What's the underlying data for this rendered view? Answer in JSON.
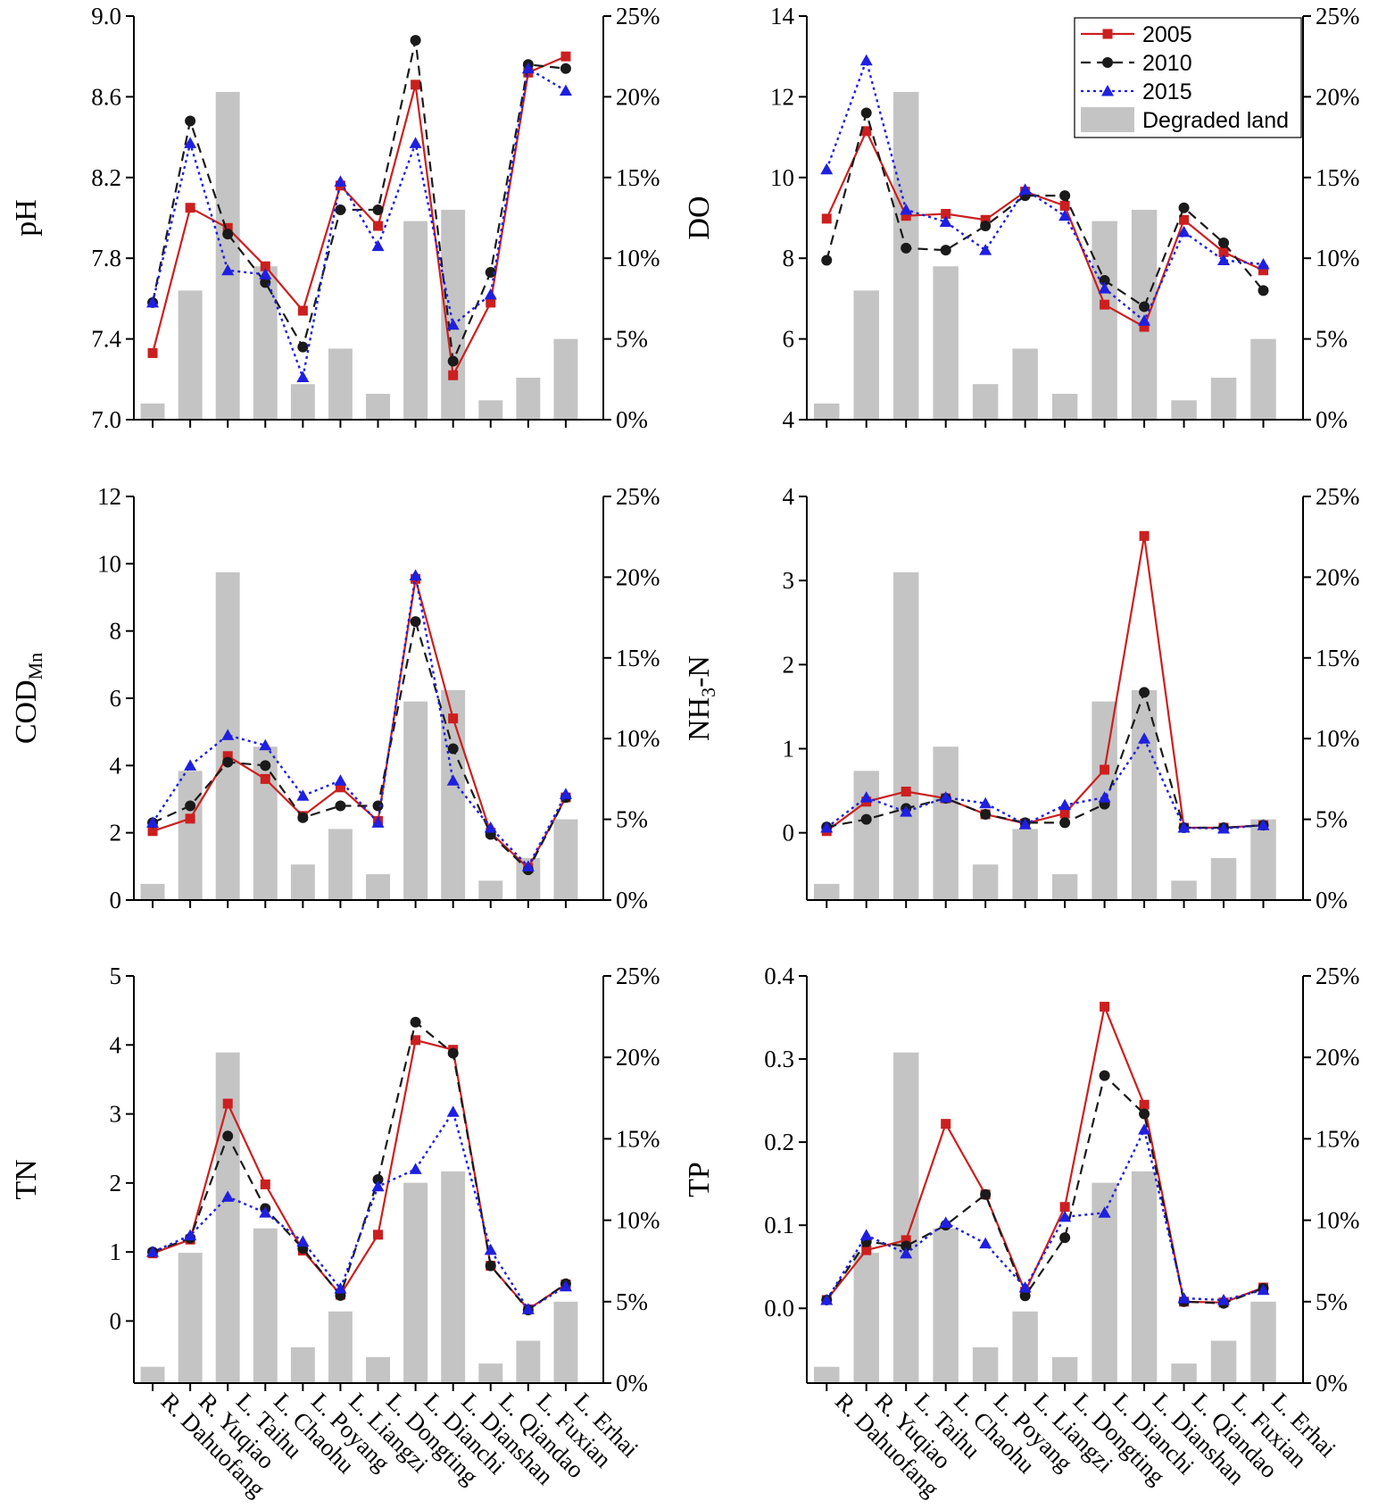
{
  "figure": {
    "categories": [
      "R. Dahuofang",
      "R. Yuqiao",
      "L. Taihu",
      "L. Chaohu",
      "L. Poyang",
      "L. Liangzi",
      "L. Dongting",
      "L. Dianchi",
      "L. Dianshan",
      "L. Qiandao",
      "L. Fuxian",
      "L. Erhai"
    ],
    "colors": {
      "2005": "#cc1f1f",
      "2010": "#1a1a1a",
      "2015": "#1f1fe0",
      "degraded": "#c4c4c4"
    },
    "legend": {
      "entries": [
        {
          "key": "2005",
          "label": "2005"
        },
        {
          "key": "2010",
          "label": "2010"
        },
        {
          "key": "2015",
          "label": "2015"
        },
        {
          "key": "degraded",
          "label": "Degraded land"
        }
      ]
    },
    "degraded_land_pct": [
      1,
      8,
      20.3,
      9.5,
      2.2,
      4.4,
      1.6,
      12.3,
      13,
      1.2,
      2.6,
      5
    ]
  },
  "chart_data": [
    {
      "type": "line",
      "ylabel": "pH",
      "ylim": [
        7.0,
        9.0
      ],
      "yticks": [
        "7.0",
        "7.4",
        "7.8",
        "8.2",
        "8.6",
        "9.0"
      ],
      "ytick_values": [
        7.0,
        7.4,
        7.8,
        8.2,
        8.6,
        9.0
      ],
      "y2ticks": [
        "0%",
        "5%",
        "10%",
        "15%",
        "20%",
        "25%"
      ],
      "y2lim": [
        0,
        25
      ],
      "series": [
        {
          "name": "2005",
          "values": [
            7.33,
            8.05,
            7.95,
            7.76,
            7.54,
            8.16,
            7.96,
            8.66,
            7.22,
            7.58,
            8.72,
            8.8
          ]
        },
        {
          "name": "2010",
          "values": [
            7.58,
            8.48,
            7.92,
            7.68,
            7.36,
            8.04,
            8.04,
            8.88,
            7.29,
            7.73,
            8.76,
            8.74
          ]
        },
        {
          "name": "2015",
          "values": [
            7.58,
            8.37,
            7.74,
            7.72,
            7.21,
            8.18,
            7.86,
            8.37,
            7.47,
            7.62,
            8.74,
            8.63
          ]
        }
      ]
    },
    {
      "type": "line",
      "ylabel": "DO",
      "ylim": [
        4,
        14
      ],
      "yticks": [
        "4",
        "6",
        "8",
        "10",
        "12",
        "14"
      ],
      "ytick_values": [
        4,
        6,
        8,
        10,
        12,
        14
      ],
      "y2ticks": [
        "0%",
        "5%",
        "10%",
        "15%",
        "20%",
        "25%"
      ],
      "y2lim": [
        0,
        25
      ],
      "legend_location": "top-right",
      "series": [
        {
          "name": "2005",
          "values": [
            8.98,
            11.15,
            9.05,
            9.1,
            8.95,
            9.65,
            9.3,
            6.85,
            6.3,
            8.95,
            8.15,
            7.7
          ]
        },
        {
          "name": "2010",
          "values": [
            7.95,
            11.6,
            8.25,
            8.2,
            8.8,
            9.55,
            9.55,
            7.45,
            6.8,
            9.25,
            8.38,
            7.2
          ]
        },
        {
          "name": "2015",
          "values": [
            10.2,
            12.9,
            9.2,
            8.9,
            8.2,
            9.7,
            9.05,
            7.25,
            6.45,
            8.65,
            7.95,
            7.85
          ]
        }
      ]
    },
    {
      "type": "line",
      "ylabel": "COD",
      "ylabel_sub": "Mn",
      "ylim": [
        0,
        12
      ],
      "yticks": [
        "0",
        "2",
        "4",
        "6",
        "8",
        "10",
        "12"
      ],
      "ytick_values": [
        0,
        2,
        4,
        6,
        8,
        10,
        12
      ],
      "y2ticks": [
        "0%",
        "5%",
        "10%",
        "15%",
        "20%",
        "25%"
      ],
      "y2lim": [
        0,
        25
      ],
      "series": [
        {
          "name": "2005",
          "values": [
            2.05,
            2.42,
            4.28,
            3.6,
            2.5,
            3.35,
            2.35,
            9.55,
            5.4,
            2.0,
            0.95,
            3.05
          ]
        },
        {
          "name": "2010",
          "values": [
            2.3,
            2.8,
            4.1,
            4.0,
            2.45,
            2.8,
            2.8,
            8.28,
            4.5,
            1.95,
            0.9,
            3.05
          ]
        },
        {
          "name": "2015",
          "values": [
            2.3,
            4.0,
            4.9,
            4.6,
            3.1,
            3.55,
            2.3,
            9.65,
            3.55,
            2.15,
            1.0,
            3.15
          ]
        }
      ]
    },
    {
      "type": "line",
      "ylabel": "NH",
      "ylabel_sub": "3",
      "ylabel_suffix": "-N",
      "ylim": [
        -0.8,
        4
      ],
      "yticks": [
        "0",
        "1",
        "2",
        "3",
        "4"
      ],
      "ytick_values": [
        0,
        1,
        2,
        3,
        4
      ],
      "y2ticks": [
        "0%",
        "5%",
        "10%",
        "15%",
        "20%",
        "25%"
      ],
      "y2lim": [
        0,
        25
      ],
      "series": [
        {
          "name": "2005",
          "values": [
            0.02,
            0.37,
            0.49,
            0.41,
            0.22,
            0.11,
            0.23,
            0.75,
            3.53,
            0.06,
            0.06,
            0.09
          ]
        },
        {
          "name": "2010",
          "values": [
            0.07,
            0.16,
            0.29,
            0.41,
            0.22,
            0.12,
            0.12,
            0.34,
            1.67,
            0.06,
            0.06,
            0.09
          ]
        },
        {
          "name": "2015",
          "values": [
            0.06,
            0.42,
            0.25,
            0.42,
            0.35,
            0.1,
            0.33,
            0.42,
            1.12,
            0.06,
            0.05,
            0.09
          ]
        }
      ]
    },
    {
      "type": "line",
      "ylabel": "TN",
      "ylim": [
        -0.9,
        5
      ],
      "yticks": [
        "0",
        "1",
        "2",
        "3",
        "4",
        "5"
      ],
      "ytick_values": [
        0,
        1,
        2,
        3,
        4,
        5
      ],
      "y2ticks": [
        "0%",
        "5%",
        "10%",
        "15%",
        "20%",
        "25%"
      ],
      "y2lim": [
        0,
        25
      ],
      "series": [
        {
          "name": "2005",
          "values": [
            0.98,
            1.18,
            3.15,
            1.98,
            1.02,
            0.38,
            1.25,
            4.07,
            3.93,
            0.8,
            0.17,
            0.53
          ]
        },
        {
          "name": "2010",
          "values": [
            1.0,
            1.2,
            2.68,
            1.63,
            1.05,
            0.37,
            2.05,
            4.33,
            3.88,
            0.8,
            0.16,
            0.54
          ]
        },
        {
          "name": "2015",
          "values": [
            1.0,
            1.24,
            1.8,
            1.57,
            1.15,
            0.47,
            1.95,
            2.2,
            3.03,
            1.03,
            0.17,
            0.5
          ]
        }
      ]
    },
    {
      "type": "line",
      "ylabel": "TP",
      "ylim": [
        -0.09,
        0.4
      ],
      "yticks": [
        "0.0",
        "0.1",
        "0.2",
        "0.3",
        "0.4"
      ],
      "ytick_values": [
        0.0,
        0.1,
        0.2,
        0.3,
        0.4
      ],
      "y2ticks": [
        "0%",
        "5%",
        "10%",
        "15%",
        "20%",
        "25%"
      ],
      "y2lim": [
        0,
        25
      ],
      "series": [
        {
          "name": "2005",
          "values": [
            0.01,
            0.07,
            0.082,
            0.222,
            0.137,
            0.02,
            0.122,
            0.363,
            0.245,
            0.008,
            0.007,
            0.025
          ]
        },
        {
          "name": "2010",
          "values": [
            0.01,
            0.08,
            0.075,
            0.1,
            0.137,
            0.015,
            0.085,
            0.28,
            0.234,
            0.008,
            0.006,
            0.024
          ]
        },
        {
          "name": "2015",
          "values": [
            0.01,
            0.088,
            0.066,
            0.103,
            0.078,
            0.025,
            0.11,
            0.115,
            0.215,
            0.012,
            0.01,
            0.022
          ]
        }
      ]
    }
  ]
}
